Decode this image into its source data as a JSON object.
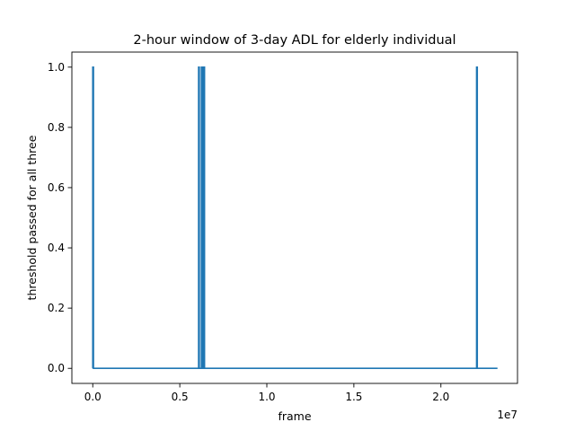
{
  "chart_data": {
    "type": "line",
    "title": "2-hour window of 3-day ADL for elderly individual",
    "xlabel": "frame",
    "ylabel": "threshold passed for all three",
    "x_offset_label": "1e7",
    "x_scale": 10000000,
    "xlim": [
      -1200000,
      24400000
    ],
    "ylim": [
      -0.05,
      1.05
    ],
    "x_ticks": [
      0,
      5000000,
      10000000,
      15000000,
      20000000
    ],
    "x_tick_labels": [
      "0.0",
      "0.5",
      "1.0",
      "1.5",
      "2.0"
    ],
    "y_ticks": [
      0,
      0.2,
      0.4,
      0.6,
      0.8,
      1.0
    ],
    "y_tick_labels": [
      "0.0",
      "0.2",
      "0.4",
      "0.6",
      "0.8",
      "1.0"
    ],
    "grid": false,
    "line_color": "#1f77b4",
    "series": [
      {
        "x": [
          0,
          0,
          40000,
          40000,
          6080000,
          6080000,
          6120000,
          6120000,
          6240000,
          6240000,
          6280000,
          6280000,
          6360000,
          6360000,
          6420000,
          6420000,
          22050000,
          22050000,
          22090000,
          22090000,
          23250000
        ],
        "values": [
          0,
          1,
          1,
          0,
          0,
          1,
          1,
          0,
          0,
          1,
          1,
          0,
          0,
          1,
          1,
          0,
          0,
          1,
          1,
          0,
          0
        ]
      }
    ]
  }
}
